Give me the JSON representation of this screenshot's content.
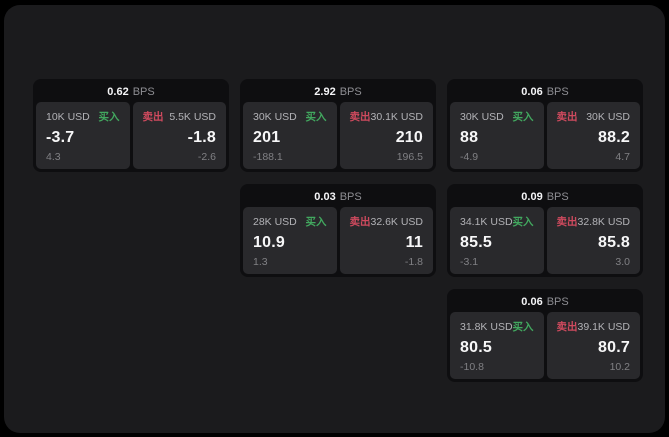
{
  "page": {
    "background": "#000000",
    "panel_bg": "#1b1b1d",
    "card_bg": "#0e0e10",
    "tile_bg": "#29292c",
    "buy_color": "#42a85f",
    "sell_color": "#cf4a5e"
  },
  "labels": {
    "bps_unit": "BPS",
    "buy": "买入",
    "sell": "卖出"
  },
  "cards": [
    {
      "col": 1,
      "row": 1,
      "bps": "0.62",
      "buy": {
        "amount": "10K USD",
        "price": "-3.7",
        "delta": "4.3"
      },
      "sell": {
        "amount": "5.5K USD",
        "price": "-1.8",
        "delta": "-2.6"
      }
    },
    {
      "col": 2,
      "row": 1,
      "bps": "2.92",
      "buy": {
        "amount": "30K USD",
        "price": "201",
        "delta": "-188.1"
      },
      "sell": {
        "amount": "30.1K USD",
        "price": "210",
        "delta": "196.5"
      }
    },
    {
      "col": 3,
      "row": 1,
      "bps": "0.06",
      "buy": {
        "amount": "30K USD",
        "price": "88",
        "delta": "-4.9"
      },
      "sell": {
        "amount": "30K USD",
        "price": "88.2",
        "delta": "4.7"
      }
    },
    {
      "col": 2,
      "row": 2,
      "bps": "0.03",
      "buy": {
        "amount": "28K USD",
        "price": "10.9",
        "delta": "1.3"
      },
      "sell": {
        "amount": "32.6K USD",
        "price": "11",
        "delta": "-1.8"
      }
    },
    {
      "col": 3,
      "row": 2,
      "bps": "0.09",
      "buy": {
        "amount": "34.1K USD",
        "price": "85.5",
        "delta": "-3.1"
      },
      "sell": {
        "amount": "32.8K USD",
        "price": "85.8",
        "delta": "3.0"
      }
    },
    {
      "col": 3,
      "row": 3,
      "bps": "0.06",
      "buy": {
        "amount": "31.8K USD",
        "price": "80.5",
        "delta": "-10.8"
      },
      "sell": {
        "amount": "39.1K USD",
        "price": "80.7",
        "delta": "10.2"
      }
    }
  ]
}
